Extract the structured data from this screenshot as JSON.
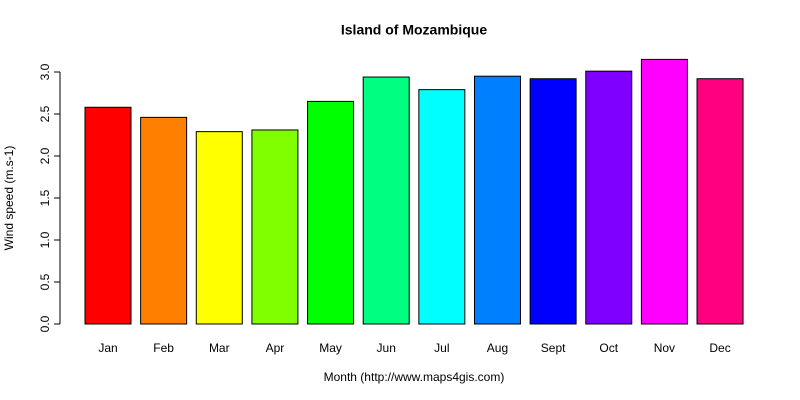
{
  "chart_data": {
    "type": "bar",
    "title": "Island of Mozambique",
    "x_label": "Month (http://www.maps4gis.com)",
    "y_label": "Wind speed (m.s-1)",
    "categories": [
      "Jan",
      "Feb",
      "Mar",
      "Apr",
      "May",
      "Jun",
      "Jul",
      "Aug",
      "Sept",
      "Oct",
      "Nov",
      "Dec"
    ],
    "values": [
      2.58,
      2.46,
      2.29,
      2.31,
      2.65,
      2.94,
      2.79,
      2.95,
      2.92,
      3.01,
      3.15,
      2.92
    ],
    "colors": [
      "#FF0000",
      "#FF8000",
      "#FFFF00",
      "#80FF00",
      "#00FF00",
      "#00FF80",
      "#00FFFF",
      "#0080FF",
      "#0000FF",
      "#8000FF",
      "#FF00FF",
      "#FF0080"
    ],
    "ylim": [
      0,
      3.0
    ],
    "yticks": [
      {
        "value": 0,
        "label": "0.0"
      },
      0.5,
      {
        "value": 1,
        "label": "1.0"
      },
      1.5,
      {
        "value": 2,
        "label": "2.0"
      },
      2.5,
      {
        "value": 3,
        "label": "3.0"
      }
    ]
  }
}
